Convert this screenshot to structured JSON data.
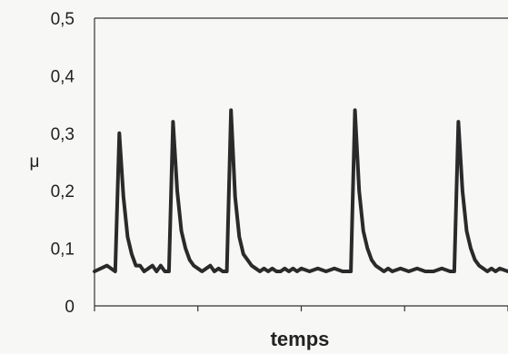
{
  "chart_data": {
    "type": "line",
    "title": "",
    "xlabel": "temps",
    "ylabel": "μ",
    "ylim": [
      0,
      0.5
    ],
    "yticks": [
      0,
      0.1,
      0.2,
      0.3,
      0.4,
      0.5
    ],
    "ytick_labels": [
      "0",
      "0,1",
      "0,2",
      "0,3",
      "0,4",
      "0,5"
    ],
    "xlim": [
      0,
      100
    ],
    "x_ticks_unlabeled": [
      0,
      25,
      50,
      75,
      100
    ],
    "grid": false,
    "legend": "none",
    "series": [
      {
        "color": "#2a2a2a",
        "x": [
          0,
          3,
          5,
          6,
          7,
          8,
          9,
          10,
          11,
          12,
          13,
          14,
          15,
          16,
          17,
          18,
          19,
          20,
          21,
          22,
          23,
          24,
          25,
          26,
          27,
          28,
          29,
          30,
          31,
          32,
          33,
          34,
          35,
          36,
          37,
          38,
          39,
          40,
          41,
          42,
          43,
          44,
          45,
          46,
          47,
          48,
          49,
          50,
          52,
          54,
          56,
          58,
          60,
          62,
          63,
          64,
          65,
          66,
          67,
          68,
          69,
          70,
          71,
          72,
          74,
          76,
          78,
          80,
          82,
          84,
          86,
          87,
          88,
          89,
          90,
          91,
          92,
          93,
          94,
          95,
          96,
          97,
          98,
          100
        ],
        "y": [
          0.06,
          0.07,
          0.06,
          0.3,
          0.19,
          0.12,
          0.09,
          0.07,
          0.07,
          0.06,
          0.065,
          0.07,
          0.06,
          0.07,
          0.06,
          0.06,
          0.32,
          0.2,
          0.13,
          0.1,
          0.08,
          0.07,
          0.065,
          0.06,
          0.065,
          0.07,
          0.06,
          0.065,
          0.06,
          0.06,
          0.34,
          0.19,
          0.12,
          0.09,
          0.08,
          0.07,
          0.065,
          0.06,
          0.065,
          0.06,
          0.065,
          0.06,
          0.06,
          0.065,
          0.06,
          0.065,
          0.06,
          0.065,
          0.06,
          0.065,
          0.06,
          0.065,
          0.06,
          0.06,
          0.34,
          0.2,
          0.13,
          0.1,
          0.08,
          0.07,
          0.065,
          0.06,
          0.065,
          0.06,
          0.065,
          0.06,
          0.065,
          0.06,
          0.06,
          0.065,
          0.06,
          0.06,
          0.32,
          0.2,
          0.13,
          0.1,
          0.08,
          0.07,
          0.065,
          0.06,
          0.065,
          0.06,
          0.065,
          0.06
        ]
      }
    ]
  }
}
